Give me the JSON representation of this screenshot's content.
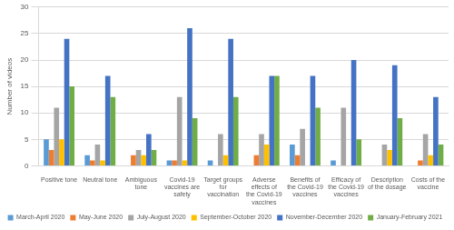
{
  "chart_data": {
    "type": "bar",
    "y_label": "Number of videos",
    "categories": [
      "Positive tone",
      "Neutral tone",
      "Ambiguous tone",
      "Covid-19 vaccines are safety",
      "Target groups for vaccination",
      "Adverse effects of the Covid-19 vaccines",
      "Benefits of the Covid-19 vaccines",
      "Efficacy of the Covid-19 vaccines",
      "Description of the dosage",
      "Costs of the vaccine"
    ],
    "series": [
      {
        "name": "March-April 2020",
        "color": "#5b9bd5",
        "values": [
          5,
          2,
          0,
          1,
          1,
          0,
          4,
          1,
          0,
          0
        ]
      },
      {
        "name": "May-June 2020",
        "color": "#ed7d31",
        "values": [
          3,
          1,
          2,
          1,
          0,
          2,
          2,
          0,
          0,
          1
        ]
      },
      {
        "name": "July-August 2020",
        "color": "#a5a5a5",
        "values": [
          11,
          4,
          3,
          13,
          6,
          6,
          7,
          11,
          4,
          6
        ]
      },
      {
        "name": "September-October 2020",
        "color": "#ffc000",
        "values": [
          5,
          1,
          2,
          1,
          2,
          4,
          0,
          0,
          3,
          2
        ]
      },
      {
        "name": "November-December 2020",
        "color": "#4472c4",
        "values": [
          24,
          17,
          6,
          26,
          24,
          17,
          17,
          20,
          19,
          13
        ]
      },
      {
        "name": "January-February 2021",
        "color": "#70ad47",
        "values": [
          15,
          13,
          3,
          9,
          13,
          17,
          11,
          5,
          9,
          4
        ]
      }
    ],
    "ylim": [
      0,
      30
    ],
    "yticks": [
      0,
      5,
      10,
      15,
      20,
      25,
      30
    ],
    "grid": true,
    "legend": "bottom"
  }
}
